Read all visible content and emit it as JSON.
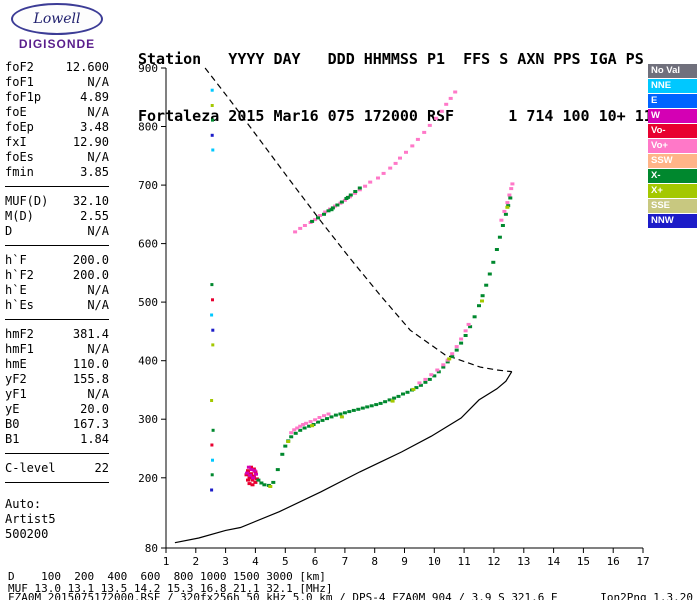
{
  "logo": {
    "name": "Lowell",
    "product": "DIGISONDE"
  },
  "header": {
    "line1": "Station   YYYY DAY   DDD HHMMSS P1  FFS S AXN PPS IGA PS",
    "line2": "Fortaleza 2015 Mar16 075 172000 RSF      1 714 100 10+ 11"
  },
  "params": {
    "groups": [
      {
        "rows": [
          [
            "foF2",
            "12.600"
          ],
          [
            "foF1",
            "N/A"
          ],
          [
            "foF1p",
            "4.89"
          ],
          [
            "foE",
            "N/A"
          ],
          [
            "foEp",
            "3.48"
          ],
          [
            "fxI",
            "12.90"
          ],
          [
            "foEs",
            "N/A"
          ],
          [
            "fmin",
            "3.85"
          ]
        ]
      },
      {
        "rows": [
          [
            "MUF(D)",
            "32.10"
          ],
          [
            "M(D)",
            "2.55"
          ],
          [
            "D",
            "N/A"
          ]
        ]
      },
      {
        "rows": [
          [
            "h`F",
            "200.0"
          ],
          [
            "h`F2",
            "200.0"
          ],
          [
            "h`E",
            "N/A"
          ],
          [
            "h`Es",
            "N/A"
          ]
        ]
      },
      {
        "rows": [
          [
            "hmF2",
            "381.4"
          ],
          [
            "hmF1",
            "N/A"
          ],
          [
            "hmE",
            "110.0"
          ],
          [
            "yF2",
            "155.8"
          ],
          [
            "yF1",
            "N/A"
          ],
          [
            "yE",
            "20.0"
          ],
          [
            "B0",
            "167.3"
          ],
          [
            "B1",
            "1.84"
          ]
        ]
      },
      {
        "rows": [
          [
            "C-level",
            "22"
          ]
        ]
      }
    ],
    "footer": [
      "Auto:",
      "Artist5",
      "500200"
    ]
  },
  "legend": {
    "items": [
      {
        "label": "No Val",
        "color": "#70707c"
      },
      {
        "label": "NNE",
        "color": "#00c8ff"
      },
      {
        "label": "E",
        "color": "#0064ff"
      },
      {
        "label": "W",
        "color": "#d400b4"
      },
      {
        "label": "Vo-",
        "color": "#e80030"
      },
      {
        "label": "Vo+",
        "color": "#ff78c8"
      },
      {
        "label": "SSW",
        "color": "#ffb488"
      },
      {
        "label": "X-",
        "color": "#00882e"
      },
      {
        "label": "X+",
        "color": "#a4c800"
      },
      {
        "label": "SSE",
        "color": "#c8c880"
      },
      {
        "label": "NNW",
        "color": "#1c1cc8"
      }
    ]
  },
  "chart_data": {
    "type": "scatter",
    "xlabel": "MHz",
    "ylabel": "km",
    "xlim": [
      1,
      17
    ],
    "ylim": [
      80,
      900
    ],
    "x_ticks": [
      1,
      2,
      3,
      4,
      5,
      6,
      7,
      8,
      9,
      10,
      11,
      12,
      13,
      14,
      15,
      16,
      17
    ],
    "y_ticks": [
      900,
      800,
      700,
      600,
      500,
      400,
      300,
      200,
      80
    ],
    "grid": false,
    "legend_position": "right",
    "profiles": [
      {
        "name": "topside-model-dashed",
        "style": "dashed",
        "color": "#000000",
        "points": [
          [
            2.31,
            900
          ],
          [
            3.15,
            845
          ],
          [
            4.15,
            777
          ],
          [
            5.16,
            708
          ],
          [
            6.17,
            640
          ],
          [
            7.17,
            575
          ],
          [
            8.18,
            512
          ],
          [
            9.19,
            452
          ],
          [
            10.36,
            410
          ],
          [
            11.54,
            389
          ],
          [
            12.1,
            384
          ],
          [
            12.45,
            382
          ],
          [
            12.6,
            381.4
          ]
        ]
      },
      {
        "name": "bottomside-profile-solid",
        "style": "solid",
        "color": "#000000",
        "points": [
          [
            1.3,
            89
          ],
          [
            2.1,
            97
          ],
          [
            3.0,
            110
          ],
          [
            3.5,
            115
          ],
          [
            4.8,
            142
          ],
          [
            6.2,
            176
          ],
          [
            7.5,
            210
          ],
          [
            8.9,
            244
          ],
          [
            9.9,
            271
          ],
          [
            10.9,
            302
          ],
          [
            11.5,
            333
          ],
          [
            12.1,
            352
          ],
          [
            12.4,
            365
          ],
          [
            12.6,
            381.4
          ]
        ]
      }
    ],
    "series": [
      {
        "name": "f-trace-start-vo-minus",
        "color": "#e80030",
        "points": [
          [
            3.7,
            205
          ],
          [
            3.75,
            212
          ],
          [
            3.8,
            200
          ],
          [
            3.85,
            207
          ],
          [
            3.9,
            196
          ],
          [
            3.95,
            203
          ],
          [
            4.0,
            210
          ],
          [
            4.05,
            198
          ],
          [
            3.8,
            190
          ],
          [
            3.9,
            188
          ],
          [
            4.0,
            192
          ],
          [
            3.75,
            196
          ],
          [
            3.85,
            218
          ],
          [
            3.95,
            215
          ]
        ]
      },
      {
        "name": "f-trace-start-w",
        "color": "#d400b4",
        "points": [
          [
            3.72,
            208
          ],
          [
            3.82,
            204
          ],
          [
            3.92,
            200
          ],
          [
            4.02,
            206
          ],
          [
            3.87,
            214
          ],
          [
            3.97,
            212
          ],
          [
            3.78,
            218
          ]
        ]
      },
      {
        "name": "f-trace-x-minus",
        "color": "#00882e",
        "points": [
          [
            4.1,
            196
          ],
          [
            4.2,
            191
          ],
          [
            4.3,
            188
          ],
          [
            4.45,
            187
          ],
          [
            4.6,
            192
          ],
          [
            4.75,
            214
          ],
          [
            4.9,
            240
          ],
          [
            5.0,
            254
          ],
          [
            5.1,
            263
          ],
          [
            5.2,
            270
          ],
          [
            5.35,
            276
          ],
          [
            5.5,
            281
          ],
          [
            5.65,
            285
          ],
          [
            5.8,
            288
          ],
          [
            5.95,
            291
          ],
          [
            6.1,
            295
          ],
          [
            6.25,
            298
          ],
          [
            6.4,
            301
          ],
          [
            6.55,
            304
          ],
          [
            6.7,
            307
          ],
          [
            6.85,
            309
          ],
          [
            7.0,
            311
          ],
          [
            7.15,
            313
          ],
          [
            7.3,
            315
          ],
          [
            7.45,
            317
          ],
          [
            7.6,
            319
          ],
          [
            7.75,
            321
          ],
          [
            7.9,
            323
          ],
          [
            8.05,
            325
          ],
          [
            8.2,
            327
          ],
          [
            8.35,
            330
          ],
          [
            8.5,
            333
          ],
          [
            8.65,
            336
          ],
          [
            8.8,
            339
          ],
          [
            8.95,
            343
          ],
          [
            9.1,
            346
          ],
          [
            9.25,
            350
          ],
          [
            9.4,
            354
          ],
          [
            9.55,
            358
          ],
          [
            9.7,
            363
          ],
          [
            9.85,
            368
          ],
          [
            10.0,
            374
          ],
          [
            10.15,
            381
          ],
          [
            10.3,
            389
          ],
          [
            10.45,
            398
          ],
          [
            10.6,
            407
          ],
          [
            10.75,
            418
          ],
          [
            10.9,
            430
          ],
          [
            11.05,
            443
          ],
          [
            11.2,
            458
          ],
          [
            11.35,
            475
          ],
          [
            11.5,
            494
          ],
          [
            11.62,
            511
          ],
          [
            11.74,
            529
          ],
          [
            11.86,
            548
          ],
          [
            11.98,
            568
          ],
          [
            12.1,
            590
          ],
          [
            12.2,
            611
          ],
          [
            12.3,
            631
          ],
          [
            12.4,
            650
          ],
          [
            12.48,
            665
          ],
          [
            12.55,
            678
          ]
        ]
      },
      {
        "name": "f-trace-vo-plus",
        "color": "#ff78c8",
        "points": [
          [
            5.2,
            277
          ],
          [
            5.3,
            282
          ],
          [
            5.4,
            285
          ],
          [
            5.5,
            288
          ],
          [
            5.6,
            291
          ],
          [
            5.7,
            293
          ],
          [
            5.85,
            296
          ],
          [
            6.0,
            299
          ],
          [
            6.15,
            303
          ],
          [
            6.3,
            306
          ],
          [
            6.45,
            309
          ],
          [
            9.5,
            362
          ],
          [
            9.7,
            368
          ],
          [
            9.9,
            376
          ],
          [
            10.1,
            384
          ],
          [
            10.3,
            393
          ],
          [
            10.45,
            401
          ],
          [
            10.6,
            412
          ],
          [
            10.75,
            424
          ],
          [
            10.9,
            437
          ],
          [
            11.05,
            451
          ],
          [
            11.15,
            462
          ],
          [
            12.25,
            640
          ],
          [
            12.35,
            655
          ],
          [
            12.45,
            670
          ],
          [
            12.52,
            683
          ],
          [
            12.58,
            694
          ],
          [
            12.62,
            702
          ]
        ]
      },
      {
        "name": "second-hop-vo-plus",
        "color": "#ff78c8",
        "points": [
          [
            5.33,
            620
          ],
          [
            5.5,
            626
          ],
          [
            5.66,
            631
          ],
          [
            5.85,
            636
          ],
          [
            6.0,
            641
          ],
          [
            6.17,
            648
          ],
          [
            6.34,
            654
          ],
          [
            6.5,
            659
          ],
          [
            6.67,
            664
          ],
          [
            6.85,
            669
          ],
          [
            7.0,
            674
          ],
          [
            7.17,
            680
          ],
          [
            7.34,
            686
          ],
          [
            7.5,
            692
          ],
          [
            7.68,
            698
          ],
          [
            7.85,
            705
          ],
          [
            8.11,
            712
          ],
          [
            8.3,
            720
          ],
          [
            8.52,
            729
          ],
          [
            8.7,
            737
          ],
          [
            8.85,
            746
          ],
          [
            9.05,
            756
          ],
          [
            9.26,
            767
          ],
          [
            9.45,
            778
          ],
          [
            9.66,
            790
          ],
          [
            9.85,
            802
          ],
          [
            10.06,
            814
          ],
          [
            10.25,
            826
          ],
          [
            10.4,
            838
          ],
          [
            10.55,
            848
          ],
          [
            10.7,
            859
          ]
        ]
      },
      {
        "name": "second-hop-x-minus",
        "color": "#00882e",
        "points": [
          [
            5.9,
            638
          ],
          [
            6.1,
            644
          ],
          [
            6.3,
            650
          ],
          [
            6.45,
            656
          ],
          [
            6.6,
            661
          ],
          [
            6.75,
            666
          ],
          [
            6.9,
            671
          ],
          [
            7.05,
            677
          ],
          [
            7.2,
            683
          ],
          [
            7.35,
            689
          ],
          [
            7.5,
            695
          ],
          [
            6.55,
            658
          ],
          [
            7.1,
            679
          ]
        ]
      },
      {
        "name": "x-plus-sprinkle",
        "color": "#a4c800",
        "points": [
          [
            4.5,
            185
          ],
          [
            5.1,
            262
          ],
          [
            5.9,
            289
          ],
          [
            6.9,
            304
          ],
          [
            8.6,
            331
          ],
          [
            9.3,
            351
          ],
          [
            10.5,
            403
          ],
          [
            11.6,
            502
          ],
          [
            12.45,
            662
          ]
        ]
      },
      {
        "name": "rfi-column-nne",
        "color": "#00c8ff",
        "dot": [
          3,
          3
        ],
        "points": [
          [
            2.55,
            862
          ],
          [
            2.57,
            760
          ],
          [
            2.53,
            478
          ],
          [
            2.56,
            230
          ]
        ]
      },
      {
        "name": "rfi-column-x-minus",
        "color": "#00882e",
        "dot": [
          3,
          3
        ],
        "points": [
          [
            2.56,
            811
          ],
          [
            2.54,
            530
          ],
          [
            2.58,
            281
          ],
          [
            2.55,
            205
          ]
        ]
      },
      {
        "name": "rfi-column-x-plus",
        "color": "#a4c800",
        "dot": [
          3,
          3
        ],
        "points": [
          [
            2.55,
            836
          ],
          [
            2.57,
            427
          ],
          [
            2.53,
            332
          ]
        ]
      },
      {
        "name": "rfi-column-vo-minus",
        "color": "#e80030",
        "dot": [
          3,
          3
        ],
        "points": [
          [
            2.56,
            504
          ],
          [
            2.54,
            256
          ]
        ]
      },
      {
        "name": "rfi-column-nnw",
        "color": "#1c1cc8",
        "dot": [
          3,
          3
        ],
        "points": [
          [
            2.55,
            785
          ],
          [
            2.57,
            452
          ],
          [
            2.53,
            179
          ]
        ]
      }
    ]
  },
  "bottom": {
    "d_row": "D    100  200  400  600  800 1000 1500 3000 [km]",
    "muf_row": "MUF 13.0 13.1 13.5 14.2 15.3 16.8 21.1 32.1 [MHz]",
    "status_left": "FZA0M_2015075172000.RSF / 320fx256h 50 kHz 5.0 km / DPS-4 FZA0M 904 / 3.9 S 321.6 E",
    "status_right": "Ion2Png 1.3.20"
  }
}
